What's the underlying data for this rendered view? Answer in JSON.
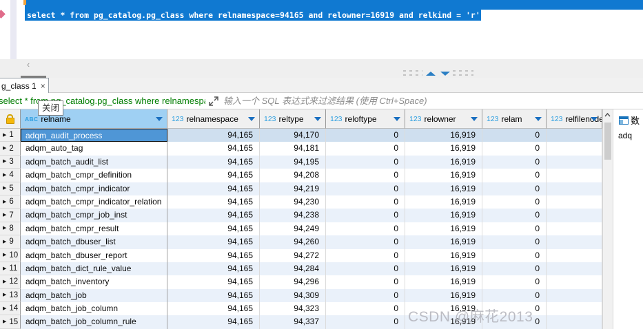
{
  "editor": {
    "sql_selected_text": "select * from pg_catalog.pg_class where relnamespace=94165 and relowner=16919 and relkind = 'r'"
  },
  "editor_scrollbar": {
    "left_arrow": "‹"
  },
  "tabs": {
    "active_label": "g_class 1",
    "close_glyph": "×"
  },
  "tooltip": {
    "text": "关闭"
  },
  "filter_bar": {
    "sql_text": "select * from pg_catalog.pg_class where relnamespa",
    "placeholder": "输入一个 SQL 表达式来过滤结果 (使用 Ctrl+Space)"
  },
  "grid": {
    "row_marker": "▶",
    "columns": [
      {
        "prefix": "ABC",
        "name": "relname",
        "selected": true
      },
      {
        "prefix": "123",
        "name": "relnamespace",
        "selected": false
      },
      {
        "prefix": "123",
        "name": "reltype",
        "selected": false
      },
      {
        "prefix": "123",
        "name": "reloftype",
        "selected": false
      },
      {
        "prefix": "123",
        "name": "relowner",
        "selected": false
      },
      {
        "prefix": "123",
        "name": "relam",
        "selected": false
      },
      {
        "prefix": "123",
        "name": "relfilenode",
        "selected": false
      }
    ],
    "rows": [
      {
        "num": "1",
        "relname": "adqm_audit_process",
        "relnamespace": "94,165",
        "reltype": "94,170",
        "reloftype": "0",
        "relowner": "16,919",
        "relam": "0",
        "relfilenode": ""
      },
      {
        "num": "2",
        "relname": "adqm_auto_tag",
        "relnamespace": "94,165",
        "reltype": "94,181",
        "reloftype": "0",
        "relowner": "16,919",
        "relam": "0",
        "relfilenode": ""
      },
      {
        "num": "3",
        "relname": "adqm_batch_audit_list",
        "relnamespace": "94,165",
        "reltype": "94,195",
        "reloftype": "0",
        "relowner": "16,919",
        "relam": "0",
        "relfilenode": ""
      },
      {
        "num": "4",
        "relname": "adqm_batch_cmpr_definition",
        "relnamespace": "94,165",
        "reltype": "94,208",
        "reloftype": "0",
        "relowner": "16,919",
        "relam": "0",
        "relfilenode": ""
      },
      {
        "num": "5",
        "relname": "adqm_batch_cmpr_indicator",
        "relnamespace": "94,165",
        "reltype": "94,219",
        "reloftype": "0",
        "relowner": "16,919",
        "relam": "0",
        "relfilenode": ""
      },
      {
        "num": "6",
        "relname": "adqm_batch_cmpr_indicator_relation",
        "relnamespace": "94,165",
        "reltype": "94,230",
        "reloftype": "0",
        "relowner": "16,919",
        "relam": "0",
        "relfilenode": ""
      },
      {
        "num": "7",
        "relname": "adqm_batch_cmpr_job_inst",
        "relnamespace": "94,165",
        "reltype": "94,238",
        "reloftype": "0",
        "relowner": "16,919",
        "relam": "0",
        "relfilenode": ""
      },
      {
        "num": "8",
        "relname": "adqm_batch_cmpr_result",
        "relnamespace": "94,165",
        "reltype": "94,249",
        "reloftype": "0",
        "relowner": "16,919",
        "relam": "0",
        "relfilenode": ""
      },
      {
        "num": "9",
        "relname": "adqm_batch_dbuser_list",
        "relnamespace": "94,165",
        "reltype": "94,260",
        "reloftype": "0",
        "relowner": "16,919",
        "relam": "0",
        "relfilenode": ""
      },
      {
        "num": "10",
        "relname": "adqm_batch_dbuser_report",
        "relnamespace": "94,165",
        "reltype": "94,272",
        "reloftype": "0",
        "relowner": "16,919",
        "relam": "0",
        "relfilenode": ""
      },
      {
        "num": "11",
        "relname": "adqm_batch_dict_rule_value",
        "relnamespace": "94,165",
        "reltype": "94,284",
        "reloftype": "0",
        "relowner": "16,919",
        "relam": "0",
        "relfilenode": ""
      },
      {
        "num": "12",
        "relname": "adqm_batch_inventory",
        "relnamespace": "94,165",
        "reltype": "94,296",
        "reloftype": "0",
        "relowner": "16,919",
        "relam": "0",
        "relfilenode": ""
      },
      {
        "num": "13",
        "relname": "adqm_batch_job",
        "relnamespace": "94,165",
        "reltype": "94,309",
        "reloftype": "0",
        "relowner": "16,919",
        "relam": "0",
        "relfilenode": ""
      },
      {
        "num": "14",
        "relname": "adqm_batch_job_column",
        "relnamespace": "94,165",
        "reltype": "94,323",
        "reloftype": "0",
        "relowner": "16,919",
        "relam": "0",
        "relfilenode": ""
      },
      {
        "num": "15",
        "relname": "adqm_batch_job_column_rule",
        "relnamespace": "94,165",
        "reltype": "94,337",
        "reloftype": "0",
        "relowner": "16,919",
        "relam": "0",
        "relfilenode": ""
      }
    ]
  },
  "value_panel": {
    "tab_label": "数",
    "value_preview": "adq"
  },
  "watermark": "CSDN @麻花2013",
  "colors": {
    "selection_blue": "#1079d1",
    "selected_cell": "#4f96d6",
    "selected_column_header": "#9fd0f3",
    "row_stripe": "#eaf1fa",
    "row_highlight": "#cfdfef",
    "filter_sql_green": "#007d00",
    "lock_yellow": "#f5b80a",
    "arrow_blue": "#1a6fc0"
  }
}
